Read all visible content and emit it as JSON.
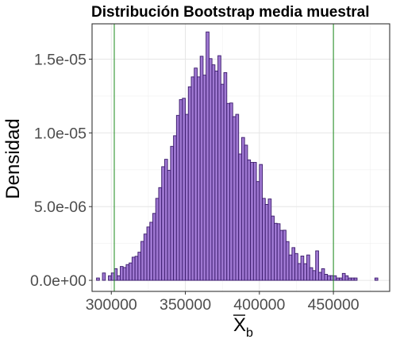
{
  "chart_data": {
    "type": "bar",
    "title": "Distribución Bootstrap media muestral",
    "xlabel": "X",
    "xlabel_subscript": "b",
    "xlabel_overline": true,
    "ylabel": "Densidad",
    "xlim": [
      287000,
      488000
    ],
    "ylim": [
      -7.5e-07,
      1.74e-05
    ],
    "x_ticks": [
      300000,
      350000,
      400000,
      450000
    ],
    "x_tick_labels": [
      "300000",
      "350000",
      "400000",
      "450000"
    ],
    "y_ticks": [
      0,
      5e-06,
      1e-05,
      1.5e-05
    ],
    "y_tick_labels": [
      "0.0e+00",
      "5.0e-06",
      "1.0e-05",
      "1.5e-05"
    ],
    "grid": true,
    "bin_width": 2000,
    "bins_start": 290000,
    "bar_fill": "#9f78d2",
    "bar_stroke": "#3a1a6b",
    "vlines": [
      302000,
      450000
    ],
    "vline_color": "#1a8a1a",
    "values": [
      1.6e-07,
      0,
      5e-07,
      0,
      3.1e-07,
      5e-07,
      7.9e-07,
      3.1e-07,
      9.4e-07,
      8.7e-07,
      1.07e-06,
      1.18e-06,
      1.57e-06,
      1.63e-06,
      1.91e-06,
      2.64e-06,
      3.14e-06,
      3.62e-06,
      3.94e-06,
      4.54e-06,
      5.56e-06,
      6.29e-06,
      7.71e-06,
      8.21e-06,
      7.46e-06,
      9.09e-06,
      9.81e-06,
      1.119e-05,
      1.226e-05,
      1.235e-05,
      1.126e-05,
      1.313e-05,
      1.38e-05,
      1.44e-05,
      1.38e-05,
      1.52e-05,
      1.392e-05,
      1.685e-05,
      1.504e-05,
      1.462e-05,
      1.42e-05,
      1.524e-05,
      1.33e-05,
      1.409e-05,
      1.2e-05,
      1.203e-05,
      1.11e-05,
      1.126e-05,
      8.57e-06,
      9.69e-06,
      9.17e-06,
      8.17e-06,
      8e-06,
      8e-06,
      6.7e-06,
      7.86e-06,
      5.56e-06,
      5.15e-06,
      5.52e-06,
      4.36e-06,
      3.87e-06,
      3.84e-06,
      3.39e-06,
      3.4e-06,
      2.63e-06,
      1.72e-06,
      2.22e-06,
      1.82e-06,
      1.14e-06,
      1.65e-06,
      1.13e-06,
      1.72e-06,
      8.6e-07,
      6.6e-07,
      2e-06,
      5.4e-07,
      7.9e-07,
      4.1e-07,
      3.2e-07,
      3.2e-07,
      3.1e-07,
      1.6e-07,
      1.6e-07,
      4.7e-07,
      3.1e-07,
      1.6e-07,
      1.6e-07,
      1.6e-07,
      0,
      0,
      0,
      0,
      0,
      0,
      1.6e-07
    ]
  }
}
